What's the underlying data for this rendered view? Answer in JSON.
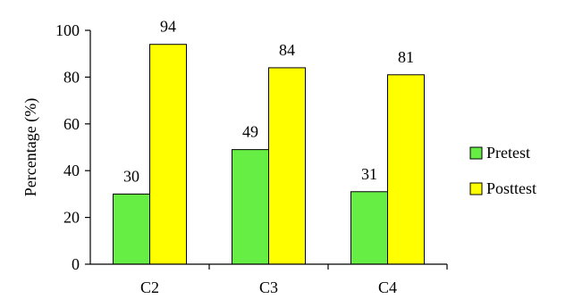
{
  "chart_data": {
    "type": "bar",
    "categories": [
      "C2",
      "C3",
      "C4"
    ],
    "series": [
      {
        "name": "Pretest",
        "values": [
          30,
          49,
          31
        ],
        "color": "#66EE44"
      },
      {
        "name": "Posttest",
        "values": [
          94,
          84,
          81
        ],
        "color": "#FFFF00"
      }
    ],
    "ylabel": "Percentage (%)",
    "xlabel": "",
    "ylim": [
      0,
      100
    ],
    "yticks": [
      0,
      20,
      40,
      60,
      80,
      100
    ],
    "grid": false,
    "legend_position": "right"
  }
}
